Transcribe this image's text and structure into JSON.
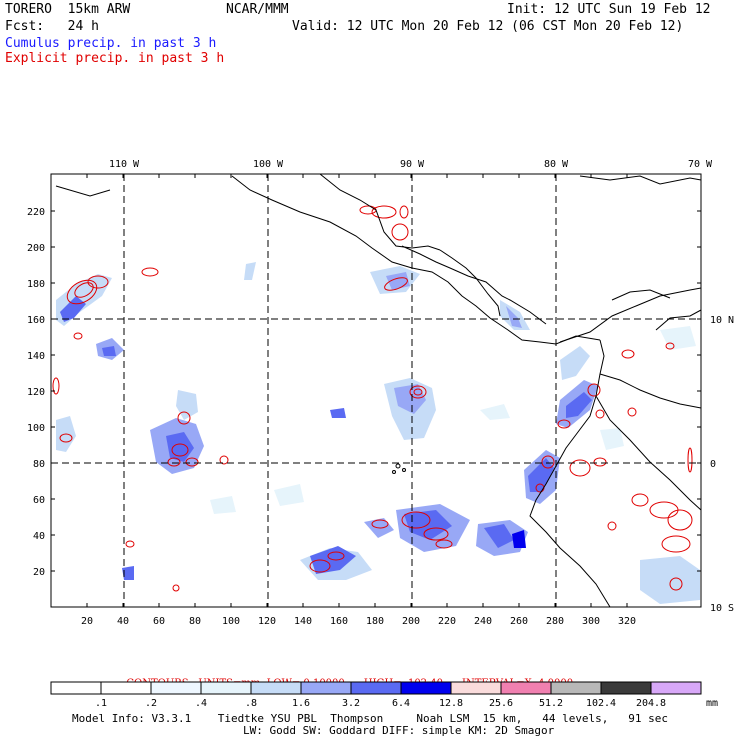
{
  "header": {
    "model": "TORERO  15km ARW",
    "org": "NCAR/MMM",
    "init": "Init: 12 UTC Sun 19 Feb 12",
    "fcst": "Fcst:   24 h",
    "valid": "Valid: 12 UTC Mon 20 Feb 12 (06 CST Mon 20 Feb 12)",
    "field1": "Cumulus precip. in past 3 h",
    "field2": "Explicit precip. in past 3 h",
    "field1_color": "#1a1aff",
    "field2_color": "#e00000"
  },
  "map": {
    "lon_labels": [
      "110 W",
      "100 W",
      "90 W",
      "80 W",
      "70 W"
    ],
    "lat_labels": [
      "10 N",
      "0",
      "10 S"
    ],
    "x_ticks": [
      "20",
      "40",
      "60",
      "80",
      "100",
      "120",
      "140",
      "160",
      "180",
      "200",
      "220",
      "240",
      "260",
      "280",
      "300",
      "320"
    ],
    "y_ticks": [
      "20",
      "40",
      "60",
      "80",
      "100",
      "120",
      "140",
      "160",
      "180",
      "200",
      "220"
    ]
  },
  "contours": {
    "label": "CONTOURS:",
    "units": "UNITS=mm",
    "low": "LOW= 0.10000",
    "high": "HIGH=  102.40",
    "interval": "INTERVAL=X  4.0000",
    "color": "#e00000"
  },
  "colorbar": {
    "unit": "mm",
    "labels": [
      ".1",
      ".2",
      ".4",
      ".8",
      "1.6",
      "3.2",
      "6.4",
      "12.8",
      "25.6",
      "51.2",
      "102.4",
      "204.8"
    ],
    "colors": [
      "#ffffff",
      "#ffffff",
      "#eef7ff",
      "#e6f4fb",
      "#c6dcf7",
      "#98a8f6",
      "#5a6af2",
      "#0000ee",
      "#fadcdc",
      "#f080b0",
      "#b8b8b8",
      "#3a3a3a",
      "#d8a8f8"
    ]
  },
  "footer": {
    "line1": "Model Info: V3.3.1    Tiedtke YSU PBL  Thompson     Noah LSM  15 km,   44 levels,   91 sec",
    "line2": "LW: Godd SW: Goddard DIFF: simple KM: 2D Smagor"
  }
}
